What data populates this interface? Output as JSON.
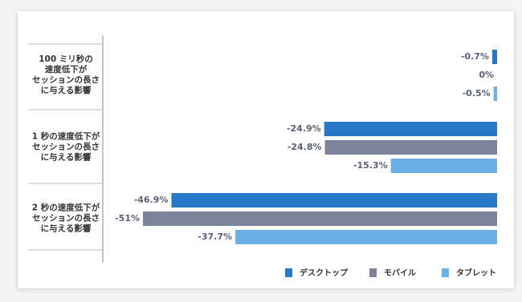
{
  "chart_data": {
    "type": "bar",
    "orientation": "horizontal",
    "categories": [
      "100 ミリ秒の\n速度低下が\nセッションの長さ\nに与える影響",
      "1 秒の速度低下が\nセッションの長さ\nに与える影響",
      "2 秒の速度低下が\nセッションの長さ\nに与える影響"
    ],
    "series": [
      {
        "name": "デスクトップ",
        "color": "#2878c8",
        "values": [
          -0.7,
          -24.9,
          -46.9
        ],
        "value_labels": [
          "-0.7%",
          "-24.9%",
          "-46.9%"
        ]
      },
      {
        "name": "モバイル",
        "color": "#7a829c",
        "values": [
          0,
          -24.8,
          -51
        ],
        "value_labels": [
          "0%",
          "-24.8%",
          "-51%"
        ]
      },
      {
        "name": "タブレット",
        "color": "#6aafe6",
        "values": [
          -0.5,
          -15.3,
          -37.7
        ],
        "value_labels": [
          "-0.5%",
          "-15.3%",
          "-37.7%"
        ]
      }
    ],
    "legend": "bottom"
  }
}
